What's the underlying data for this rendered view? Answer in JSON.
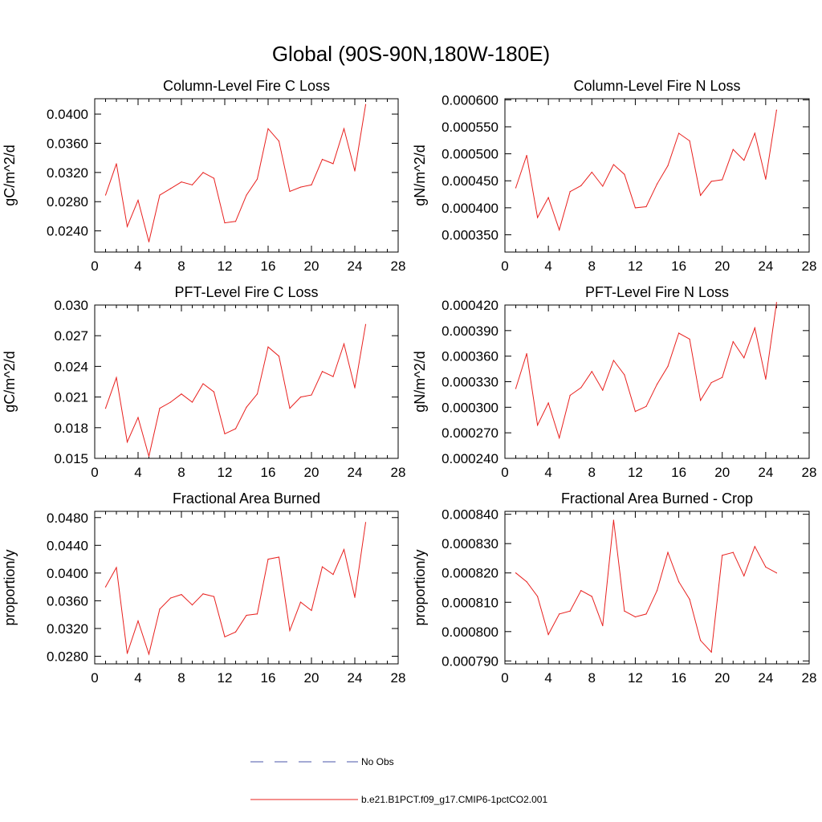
{
  "figure": {
    "title": "Global (90S-90N,180W-180E)"
  },
  "legend": [
    {
      "label": "No Obs",
      "color": "#4a55a8",
      "dashed": true
    },
    {
      "label": "b.e21.B1PCT.f09_g17.CMIP6-1pctCO2.001",
      "color": "#e8201e",
      "dashed": false
    }
  ],
  "chart_data": [
    {
      "type": "line",
      "title": "Column-Level Fire C Loss",
      "xlabel": "",
      "ylabel": "gC/m^2/d",
      "xlim": [
        0,
        28
      ],
      "ylim": [
        0.0211,
        0.0421
      ],
      "xticks": [
        "0",
        "4",
        "8",
        "12",
        "16",
        "20",
        "24",
        "28"
      ],
      "xtick_values": [
        0,
        4,
        8,
        12,
        16,
        20,
        24,
        28
      ],
      "yticks": [
        "0.0240",
        "0.0280",
        "0.0320",
        "0.0360",
        "0.0400"
      ],
      "ytick_values": [
        0.024,
        0.028,
        0.032,
        0.036,
        0.04
      ],
      "series": [
        {
          "color": "#e8201e",
          "x": [
            1,
            2,
            3,
            4,
            5,
            6,
            7,
            8,
            9,
            10,
            11,
            12,
            13,
            14,
            15,
            16,
            17,
            18,
            19,
            20,
            21,
            22,
            23,
            24,
            25
          ],
          "y": [
            0.0289,
            0.0332,
            0.0246,
            0.0282,
            0.0225,
            0.0289,
            0.0298,
            0.0307,
            0.0303,
            0.032,
            0.0312,
            0.0251,
            0.0253,
            0.0289,
            0.0311,
            0.038,
            0.0363,
            0.0294,
            0.03,
            0.0303,
            0.0338,
            0.0332,
            0.038,
            0.0322,
            0.0413
          ]
        }
      ]
    },
    {
      "type": "line",
      "title": "Column-Level Fire N Loss",
      "xlabel": "",
      "ylabel": "gN/m^2/d",
      "xlim": [
        0,
        28
      ],
      "ylim": [
        0.000318,
        0.000602
      ],
      "xticks": [
        "0",
        "4",
        "8",
        "12",
        "16",
        "20",
        "24",
        "28"
      ],
      "xtick_values": [
        0,
        4,
        8,
        12,
        16,
        20,
        24,
        28
      ],
      "yticks": [
        "0.000350",
        "0.000400",
        "0.000450",
        "0.000500",
        "0.000550",
        "0.000600"
      ],
      "ytick_values": [
        0.00035,
        0.0004,
        0.00045,
        0.0005,
        0.00055,
        0.0006
      ],
      "series": [
        {
          "color": "#e8201e",
          "x": [
            1,
            2,
            3,
            4,
            5,
            6,
            7,
            8,
            9,
            10,
            11,
            12,
            13,
            14,
            15,
            16,
            17,
            18,
            19,
            20,
            21,
            22,
            23,
            24,
            25
          ],
          "y": [
            0.000437,
            0.000497,
            0.000382,
            0.000419,
            0.000359,
            0.00043,
            0.000441,
            0.000466,
            0.00044,
            0.00048,
            0.000462,
            0.0004,
            0.000402,
            0.000444,
            0.000478,
            0.000538,
            0.000524,
            0.000423,
            0.000449,
            0.000452,
            0.000508,
            0.000488,
            0.000538,
            0.000453,
            0.000581
          ]
        }
      ]
    },
    {
      "type": "line",
      "title": "PFT-Level Fire C Loss",
      "xlabel": "",
      "ylabel": "gC/m^2/d",
      "xlim": [
        0,
        28
      ],
      "ylim": [
        0.015,
        0.03
      ],
      "xticks": [
        "0",
        "4",
        "8",
        "12",
        "16",
        "20",
        "24",
        "28"
      ],
      "xtick_values": [
        0,
        4,
        8,
        12,
        16,
        20,
        24,
        28
      ],
      "yticks": [
        "0.015",
        "0.018",
        "0.021",
        "0.024",
        "0.027",
        "0.030"
      ],
      "ytick_values": [
        0.015,
        0.018,
        0.021,
        0.024,
        0.027,
        0.03
      ],
      "series": [
        {
          "color": "#e8201e",
          "x": [
            1,
            2,
            3,
            4,
            5,
            6,
            7,
            8,
            9,
            10,
            11,
            12,
            13,
            14,
            15,
            16,
            17,
            18,
            19,
            20,
            21,
            22,
            23,
            24,
            25
          ],
          "y": [
            0.0199,
            0.0229,
            0.0166,
            0.019,
            0.0152,
            0.0199,
            0.0205,
            0.0213,
            0.0205,
            0.0223,
            0.0215,
            0.0174,
            0.0179,
            0.02,
            0.0213,
            0.0259,
            0.025,
            0.0199,
            0.021,
            0.0212,
            0.0235,
            0.023,
            0.0262,
            0.0219,
            0.0281
          ]
        }
      ]
    },
    {
      "type": "line",
      "title": "PFT-Level Fire N Loss",
      "xlabel": "",
      "ylabel": "gN/m^2/d",
      "xlim": [
        0,
        28
      ],
      "ylim": [
        0.00024,
        0.00042
      ],
      "xticks": [
        "0",
        "4",
        "8",
        "12",
        "16",
        "20",
        "24",
        "28"
      ],
      "xtick_values": [
        0,
        4,
        8,
        12,
        16,
        20,
        24,
        28
      ],
      "yticks": [
        "0.000240",
        "0.000270",
        "0.000300",
        "0.000330",
        "0.000360",
        "0.000390",
        "0.000420"
      ],
      "ytick_values": [
        0.00024,
        0.00027,
        0.0003,
        0.00033,
        0.00036,
        0.00039,
        0.00042
      ],
      "series": [
        {
          "color": "#e8201e",
          "x": [
            1,
            2,
            3,
            4,
            5,
            6,
            7,
            8,
            9,
            10,
            11,
            12,
            13,
            14,
            15,
            16,
            17,
            18,
            19,
            20,
            21,
            22,
            23,
            24,
            25
          ],
          "y": [
            0.000322,
            0.000363,
            0.000279,
            0.000305,
            0.000264,
            0.000314,
            0.000323,
            0.000342,
            0.00032,
            0.000355,
            0.000338,
            0.000295,
            0.000301,
            0.000327,
            0.000348,
            0.000387,
            0.00038,
            0.000308,
            0.000329,
            0.000335,
            0.000377,
            0.000358,
            0.000393,
            0.000333,
            0.000423
          ]
        }
      ]
    },
    {
      "type": "line",
      "title": "Fractional Area Burned",
      "xlabel": "",
      "ylabel": "proportion/y",
      "xlim": [
        0,
        28
      ],
      "ylim": [
        0.0269,
        0.0489
      ],
      "xticks": [
        "0",
        "4",
        "8",
        "12",
        "16",
        "20",
        "24",
        "28"
      ],
      "xtick_values": [
        0,
        4,
        8,
        12,
        16,
        20,
        24,
        28
      ],
      "yticks": [
        "0.0280",
        "0.0320",
        "0.0360",
        "0.0400",
        "0.0440",
        "0.0480"
      ],
      "ytick_values": [
        0.028,
        0.032,
        0.036,
        0.04,
        0.044,
        0.048
      ],
      "series": [
        {
          "color": "#e8201e",
          "x": [
            1,
            2,
            3,
            4,
            5,
            6,
            7,
            8,
            9,
            10,
            11,
            12,
            13,
            14,
            15,
            16,
            17,
            18,
            19,
            20,
            21,
            22,
            23,
            24,
            25
          ],
          "y": [
            0.038,
            0.0408,
            0.0284,
            0.0331,
            0.0283,
            0.0348,
            0.0364,
            0.0369,
            0.0354,
            0.037,
            0.0366,
            0.0308,
            0.0315,
            0.0339,
            0.0341,
            0.042,
            0.0423,
            0.0317,
            0.0358,
            0.0346,
            0.0409,
            0.0398,
            0.0434,
            0.0365,
            0.0473
          ]
        }
      ]
    },
    {
      "type": "line",
      "title": "Fractional Area Burned - Crop",
      "xlabel": "",
      "ylabel": "proportion/y",
      "xlim": [
        0,
        28
      ],
      "ylim": [
        0.000789,
        0.000841
      ],
      "xticks": [
        "0",
        "4",
        "8",
        "12",
        "16",
        "20",
        "24",
        "28"
      ],
      "xtick_values": [
        0,
        4,
        8,
        12,
        16,
        20,
        24,
        28
      ],
      "yticks": [
        "0.000790",
        "0.000800",
        "0.000810",
        "0.000820",
        "0.000830",
        "0.000840"
      ],
      "ytick_values": [
        0.00079,
        0.0008,
        0.00081,
        0.00082,
        0.00083,
        0.00084
      ],
      "series": [
        {
          "color": "#e8201e",
          "x": [
            1,
            2,
            3,
            4,
            5,
            6,
            7,
            8,
            9,
            10,
            11,
            12,
            13,
            14,
            15,
            16,
            17,
            18,
            19,
            20,
            21,
            22,
            23,
            24,
            25
          ],
          "y": [
            0.00082,
            0.000817,
            0.000812,
            0.000799,
            0.000806,
            0.000807,
            0.000814,
            0.000812,
            0.000802,
            0.000838,
            0.000807,
            0.000805,
            0.000806,
            0.000814,
            0.000827,
            0.000817,
            0.000811,
            0.000797,
            0.000793,
            0.000826,
            0.000827,
            0.000819,
            0.000829,
            0.000822,
            0.00082
          ]
        }
      ]
    }
  ]
}
